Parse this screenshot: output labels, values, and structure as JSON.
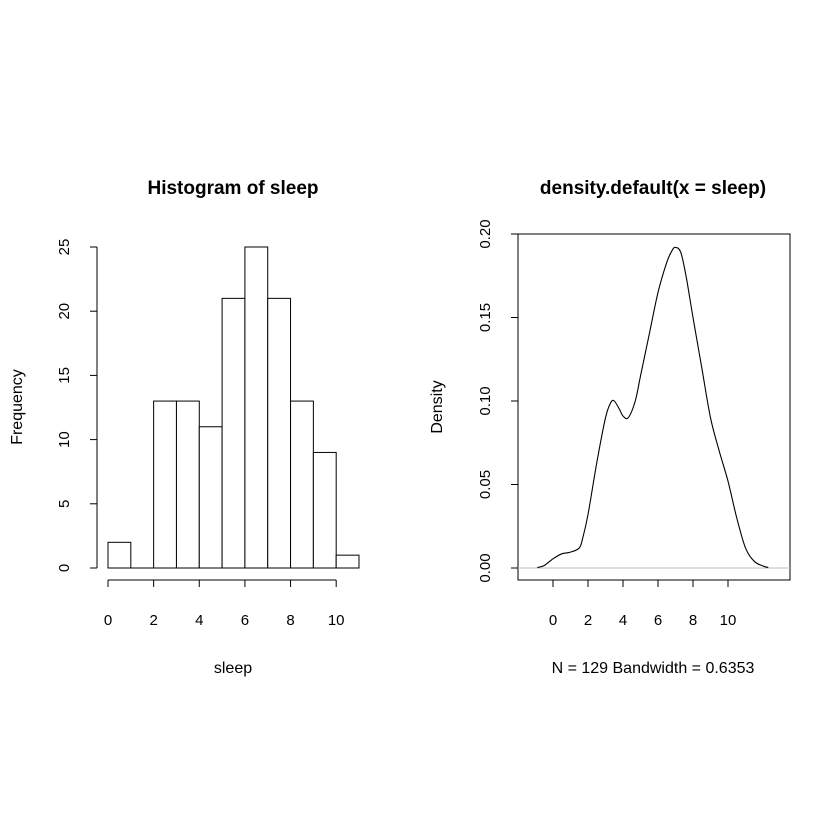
{
  "chart_data": [
    {
      "type": "bar",
      "title": "Histogram of sleep",
      "xlabel": "sleep",
      "ylabel": "Frequency",
      "bins": [
        [
          0,
          1
        ],
        [
          1,
          2
        ],
        [
          2,
          3
        ],
        [
          3,
          4
        ],
        [
          4,
          5
        ],
        [
          5,
          6
        ],
        [
          6,
          7
        ],
        [
          7,
          8
        ],
        [
          8,
          9
        ],
        [
          9,
          10
        ],
        [
          10,
          11
        ]
      ],
      "values": [
        2,
        0,
        13,
        13,
        11,
        21,
        25,
        21,
        13,
        9,
        1
      ],
      "xlim": [
        0,
        11
      ],
      "ylim": [
        0,
        25
      ],
      "xticks": [
        0,
        2,
        4,
        6,
        8,
        10
      ],
      "yticks": [
        0,
        5,
        10,
        15,
        20,
        25
      ]
    },
    {
      "type": "line",
      "title": "density.default(x = sleep)",
      "xlabel": "N = 129   Bandwidth = 0.6353",
      "ylabel": "Density",
      "x": [
        -0.9,
        -0.5,
        0,
        0.5,
        1,
        1.5,
        1.7,
        2,
        2.5,
        3,
        3.3,
        3.5,
        3.8,
        4,
        4.3,
        4.7,
        5,
        5.5,
        6,
        6.5,
        6.8,
        7,
        7.3,
        7.6,
        8,
        8.5,
        9,
        9.5,
        10,
        10.5,
        11,
        11.5,
        12,
        12.3
      ],
      "y": [
        0.0003,
        0.0015,
        0.0055,
        0.0085,
        0.0095,
        0.012,
        0.018,
        0.032,
        0.063,
        0.09,
        0.099,
        0.1,
        0.095,
        0.091,
        0.09,
        0.1,
        0.115,
        0.14,
        0.165,
        0.183,
        0.19,
        0.192,
        0.189,
        0.175,
        0.15,
        0.12,
        0.09,
        0.07,
        0.052,
        0.03,
        0.012,
        0.004,
        0.0012,
        0.0003
      ],
      "xlim": [
        -2.3,
        13.5
      ],
      "ylim": [
        -0.008,
        0.2
      ],
      "xticks": [
        0,
        2,
        4,
        6,
        8,
        10
      ],
      "yticks": [
        0.0,
        0.05,
        0.1,
        0.15,
        0.2
      ],
      "ytick_labels": [
        "0.00",
        "0.05",
        "0.10",
        "0.15",
        "0.20"
      ],
      "zero_line_color": "#bebebe",
      "box": true
    }
  ]
}
